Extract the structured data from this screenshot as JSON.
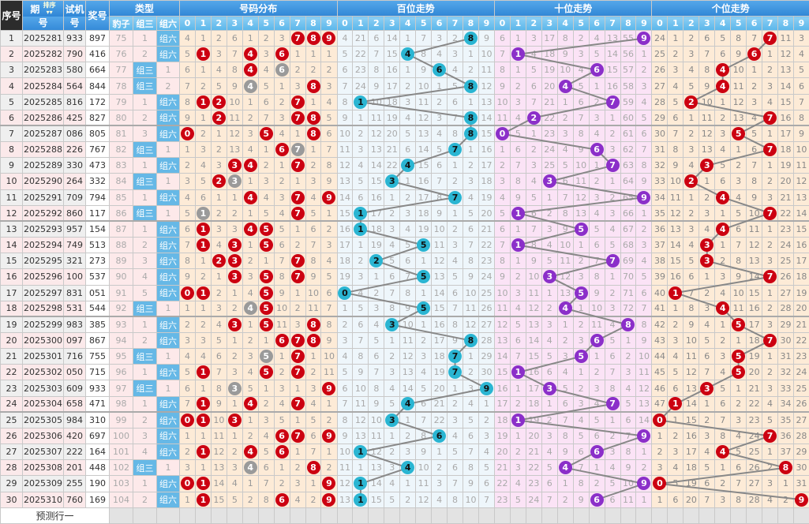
{
  "header": {
    "seq": "序号",
    "period_top": "期",
    "period_bottom": "号",
    "sort": "排序",
    "sort_arrows": "▾▾",
    "test_top": "试机",
    "test_bottom": "号",
    "prize": "奖号",
    "type": "类型",
    "type_cols": [
      "豹子",
      "组三",
      "组六"
    ],
    "sections": [
      "号码分布",
      "百位走势",
      "十位走势",
      "个位走势"
    ],
    "digits": [
      "0",
      "1",
      "2",
      "3",
      "4",
      "5",
      "6",
      "7",
      "8",
      "9"
    ]
  },
  "rows": [
    {
      "seq": "1",
      "period": "2025281",
      "test": "933",
      "prize": "897"
    },
    {
      "seq": "2",
      "period": "2025282",
      "test": "790",
      "prize": "416"
    },
    {
      "seq": "3",
      "period": "2025283",
      "test": "580",
      "prize": "664"
    },
    {
      "seq": "4",
      "period": "2025284",
      "test": "564",
      "prize": "844"
    },
    {
      "seq": "5",
      "period": "2025285",
      "test": "816",
      "prize": "172"
    },
    {
      "seq": "6",
      "period": "2025286",
      "test": "425",
      "prize": "827"
    },
    {
      "seq": "7",
      "period": "2025287",
      "test": "086",
      "prize": "805"
    },
    {
      "seq": "8",
      "period": "2025288",
      "test": "226",
      "prize": "767"
    },
    {
      "seq": "9",
      "period": "2025289",
      "test": "330",
      "prize": "473"
    },
    {
      "seq": "10",
      "period": "2025290",
      "test": "264",
      "prize": "332"
    },
    {
      "seq": "11",
      "period": "2025291",
      "test": "709",
      "prize": "794"
    },
    {
      "seq": "12",
      "period": "2025292",
      "test": "860",
      "prize": "117"
    },
    {
      "seq": "13",
      "period": "2025293",
      "test": "957",
      "prize": "154"
    },
    {
      "seq": "14",
      "period": "2025294",
      "test": "749",
      "prize": "513"
    },
    {
      "seq": "15",
      "period": "2025295",
      "test": "321",
      "prize": "273"
    },
    {
      "seq": "16",
      "period": "2025296",
      "test": "100",
      "prize": "537"
    },
    {
      "seq": "17",
      "period": "2025297",
      "test": "831",
      "prize": "051"
    },
    {
      "seq": "18",
      "period": "2025298",
      "test": "531",
      "prize": "544"
    },
    {
      "seq": "19",
      "period": "2025299",
      "test": "983",
      "prize": "385"
    },
    {
      "seq": "20",
      "period": "2025300",
      "test": "097",
      "prize": "867"
    },
    {
      "seq": "21",
      "period": "2025301",
      "test": "716",
      "prize": "755"
    },
    {
      "seq": "22",
      "period": "2025302",
      "test": "050",
      "prize": "715"
    },
    {
      "seq": "23",
      "period": "2025303",
      "test": "609",
      "prize": "933"
    },
    {
      "seq": "24",
      "period": "2025304",
      "test": "658",
      "prize": "471"
    },
    {
      "seq": "25",
      "period": "2025305",
      "test": "984",
      "prize": "310"
    },
    {
      "seq": "26",
      "period": "2025306",
      "test": "420",
      "prize": "697"
    },
    {
      "seq": "27",
      "period": "2025307",
      "test": "222",
      "prize": "164"
    },
    {
      "seq": "28",
      "period": "2025308",
      "test": "201",
      "prize": "448"
    },
    {
      "seq": "29",
      "period": "2025309",
      "test": "255",
      "prize": "190"
    },
    {
      "seq": "30",
      "period": "2025310",
      "test": "760",
      "prize": "169"
    }
  ],
  "first_row_omissions": {
    "type": [
      75,
      1,
      0
    ],
    "dist": [
      4,
      1,
      2,
      6,
      1,
      2,
      3,
      0,
      0,
      0
    ],
    "bai": [
      4,
      21,
      6,
      14,
      1,
      7,
      3,
      2,
      0,
      9
    ],
    "shi": [
      6,
      1,
      3,
      17,
      8,
      2,
      4,
      13,
      55,
      0
    ],
    "ge": [
      24,
      1,
      2,
      6,
      5,
      8,
      7,
      0,
      11,
      3
    ]
  },
  "footer": {
    "label": "预测行一"
  },
  "colors": {
    "header": "#2f86d6",
    "subheader": "#5ab6ea",
    "dist_ball": "#cc0011",
    "double_ball": "#9a9a9a",
    "bai_ball": "#2ab5d2",
    "shi_ball": "#8b2fc9",
    "ge_ball": "#cc0011",
    "type_hit": "#66b8e6",
    "line": "#888888"
  }
}
